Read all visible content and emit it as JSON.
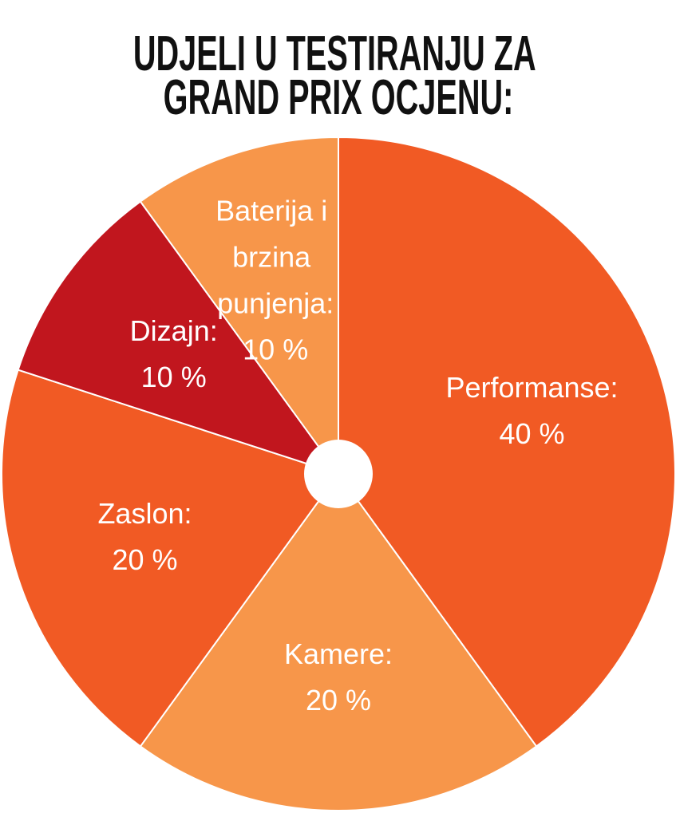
{
  "chart_data": {
    "type": "pie",
    "title": "UDJELI U TESTIRANJU ZA GRAND PRIX OCJENU:",
    "categories": [
      "Performanse:",
      "Kamere:",
      "Zaslon:",
      "Dizajn:",
      "Baterija i brzina punjenja:"
    ],
    "values": [
      40,
      20,
      20,
      10,
      10
    ],
    "value_labels": [
      "40 %",
      "20 %",
      "20 %",
      "10 %",
      "10 %"
    ],
    "colors": [
      "#f15a24",
      "#f7964a",
      "#f15a24",
      "#c1161e",
      "#f7964a"
    ]
  }
}
